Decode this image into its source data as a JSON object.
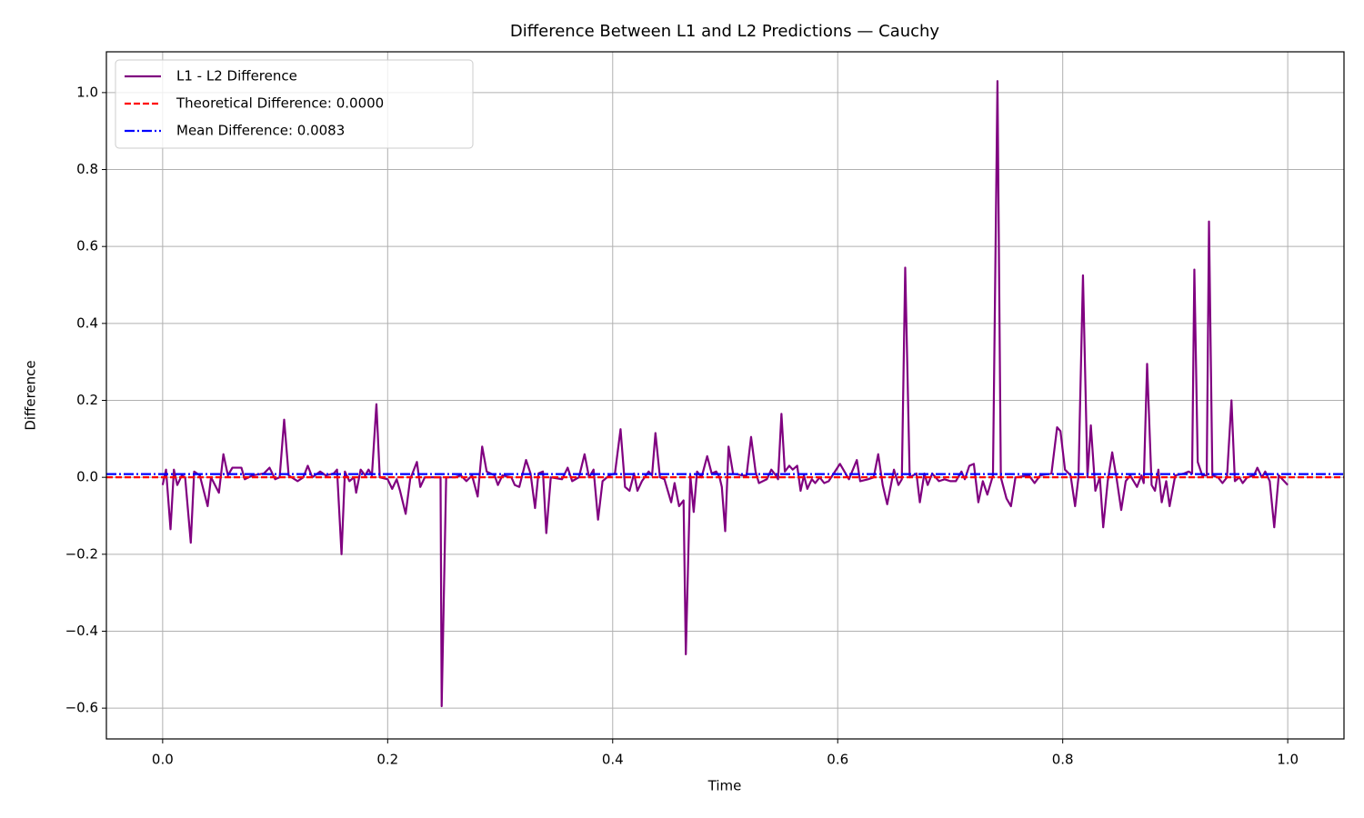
{
  "chart_data": {
    "type": "line",
    "title": "Difference Between L1 and L2 Predictions — Cauchy",
    "xlabel": "Time",
    "ylabel": "Difference",
    "x": [
      0.0,
      0.003,
      0.007,
      0.01,
      0.013,
      0.017,
      0.02,
      0.025,
      0.028,
      0.033,
      0.04,
      0.043,
      0.05,
      0.054,
      0.058,
      0.062,
      0.07,
      0.073,
      0.08,
      0.09,
      0.095,
      0.1,
      0.104,
      0.108,
      0.112,
      0.12,
      0.125,
      0.129,
      0.133,
      0.14,
      0.145,
      0.152,
      0.155,
      0.159,
      0.162,
      0.166,
      0.17,
      0.172,
      0.176,
      0.18,
      0.183,
      0.186,
      0.19,
      0.193,
      0.2,
      0.204,
      0.208,
      0.211,
      0.216,
      0.22,
      0.226,
      0.229,
      0.233,
      0.24,
      0.247,
      0.248,
      0.252,
      0.26,
      0.265,
      0.27,
      0.275,
      0.28,
      0.284,
      0.288,
      0.295,
      0.298,
      0.302,
      0.31,
      0.313,
      0.317,
      0.323,
      0.327,
      0.331,
      0.334,
      0.338,
      0.341,
      0.345,
      0.355,
      0.36,
      0.364,
      0.37,
      0.375,
      0.379,
      0.383,
      0.387,
      0.391,
      0.397,
      0.402,
      0.407,
      0.411,
      0.415,
      0.419,
      0.422,
      0.426,
      0.432,
      0.435,
      0.438,
      0.442,
      0.446,
      0.452,
      0.455,
      0.459,
      0.463,
      0.465,
      0.469,
      0.472,
      0.475,
      0.479,
      0.484,
      0.488,
      0.492,
      0.495,
      0.497,
      0.5,
      0.503,
      0.507,
      0.515,
      0.519,
      0.523,
      0.527,
      0.53,
      0.537,
      0.541,
      0.545,
      0.547,
      0.55,
      0.553,
      0.557,
      0.56,
      0.564,
      0.567,
      0.57,
      0.573,
      0.577,
      0.58,
      0.584,
      0.588,
      0.592,
      0.602,
      0.607,
      0.61,
      0.617,
      0.62,
      0.627,
      0.632,
      0.636,
      0.64,
      0.644,
      0.65,
      0.654,
      0.657,
      0.66,
      0.664,
      0.67,
      0.673,
      0.677,
      0.68,
      0.684,
      0.69,
      0.695,
      0.7,
      0.705,
      0.71,
      0.713,
      0.717,
      0.721,
      0.725,
      0.729,
      0.733,
      0.738,
      0.742,
      0.745,
      0.75,
      0.754,
      0.758,
      0.77,
      0.775,
      0.78,
      0.79,
      0.795,
      0.798,
      0.802,
      0.807,
      0.811,
      0.814,
      0.818,
      0.822,
      0.825,
      0.829,
      0.833,
      0.836,
      0.84,
      0.844,
      0.848,
      0.852,
      0.856,
      0.86,
      0.863,
      0.866,
      0.87,
      0.872,
      0.875,
      0.879,
      0.882,
      0.885,
      0.888,
      0.892,
      0.895,
      0.9,
      0.908,
      0.912,
      0.915,
      0.917,
      0.92,
      0.924,
      0.928,
      0.93,
      0.933,
      0.938,
      0.942,
      0.946,
      0.95,
      0.953,
      0.957,
      0.96,
      0.964,
      0.97,
      0.973,
      0.977,
      0.98,
      0.984,
      0.988,
      0.992,
      1.0
    ],
    "series": [
      {
        "name": "L1 - L2 Difference",
        "color": "#800080",
        "values": [
          -0.02,
          0.02,
          -0.135,
          0.02,
          -0.02,
          0.005,
          0.0,
          -0.17,
          0.015,
          0.005,
          -0.075,
          0.0,
          -0.04,
          0.06,
          0.005,
          0.025,
          0.025,
          -0.005,
          0.005,
          0.01,
          0.025,
          -0.005,
          0.0,
          0.15,
          0.005,
          -0.01,
          0.0,
          0.03,
          0.0,
          0.015,
          0.005,
          0.01,
          0.02,
          -0.2,
          0.015,
          -0.01,
          0.0,
          -0.04,
          0.02,
          0.005,
          0.02,
          0.005,
          0.19,
          0.0,
          -0.005,
          -0.03,
          -0.005,
          -0.035,
          -0.095,
          -0.005,
          0.04,
          -0.025,
          0.0,
          0.0,
          0.0,
          -0.595,
          0.0,
          0.0,
          0.005,
          -0.01,
          0.005,
          -0.05,
          0.08,
          0.015,
          0.005,
          -0.02,
          0.005,
          0.0,
          -0.02,
          -0.025,
          0.045,
          0.01,
          -0.08,
          0.01,
          0.015,
          -0.145,
          0.0,
          -0.005,
          0.025,
          -0.01,
          0.0,
          0.06,
          0.0,
          0.02,
          -0.11,
          -0.01,
          0.005,
          0.01,
          0.125,
          -0.025,
          -0.035,
          0.01,
          -0.035,
          -0.01,
          0.015,
          0.005,
          0.115,
          0.0,
          -0.005,
          -0.065,
          -0.015,
          -0.075,
          -0.06,
          -0.46,
          0.005,
          -0.09,
          0.015,
          0.0,
          0.055,
          0.01,
          0.015,
          0.0,
          -0.025,
          -0.14,
          0.08,
          0.01,
          0.005,
          0.005,
          0.105,
          0.015,
          -0.015,
          -0.005,
          0.02,
          0.005,
          -0.005,
          0.165,
          0.015,
          0.03,
          0.02,
          0.03,
          -0.035,
          0.005,
          -0.03,
          -0.005,
          -0.015,
          0.0,
          -0.015,
          -0.01,
          0.035,
          0.01,
          -0.005,
          0.045,
          -0.01,
          -0.005,
          0.0,
          0.06,
          -0.02,
          -0.07,
          0.02,
          -0.02,
          -0.005,
          0.545,
          0.0,
          0.01,
          -0.065,
          0.01,
          -0.02,
          0.01,
          -0.01,
          -0.005,
          -0.01,
          -0.01,
          0.015,
          -0.005,
          0.03,
          0.035,
          -0.065,
          -0.01,
          -0.045,
          0.005,
          1.03,
          0.0,
          -0.055,
          -0.075,
          0.0,
          0.005,
          -0.015,
          0.005,
          0.01,
          0.13,
          0.12,
          0.02,
          0.005,
          -0.075,
          0.0,
          0.525,
          0.0,
          0.135,
          -0.035,
          0.0,
          -0.13,
          -0.01,
          0.065,
          -0.005,
          -0.085,
          -0.01,
          0.005,
          -0.01,
          -0.025,
          0.005,
          -0.015,
          0.295,
          -0.02,
          -0.035,
          0.02,
          -0.065,
          -0.01,
          -0.075,
          0.005,
          0.01,
          0.015,
          0.01,
          0.54,
          0.04,
          0.005,
          0.005,
          0.665,
          0.005,
          0.0,
          -0.015,
          0.0,
          0.2,
          -0.01,
          0.0,
          -0.015,
          0.0,
          0.005,
          0.025,
          0.0,
          0.015,
          -0.01,
          -0.13,
          0.005,
          -0.02
        ]
      }
    ],
    "hlines": [
      {
        "name": "Theoretical Difference: 0.0000",
        "color": "#ff0000",
        "value": 0.0,
        "linestyle": "dashed"
      },
      {
        "name": "Mean Difference: 0.0083",
        "color": "#0000ff",
        "value": 0.0083,
        "linestyle": "dashdot"
      }
    ],
    "xlim": [
      -0.05,
      1.05
    ],
    "ylim": [
      -0.68,
      1.106
    ],
    "xticks": [
      {
        "value": 0,
        "label": "0.0"
      },
      0.2,
      0.4,
      0.6,
      0.8,
      {
        "value": 1,
        "label": "1.0"
      }
    ],
    "yticks": [
      {
        "value": -0.6,
        "label": "−0.6"
      },
      {
        "value": -0.4,
        "label": "−0.4"
      },
      {
        "value": -0.2,
        "label": "−0.2"
      },
      {
        "value": 0,
        "label": "0.0"
      },
      0.2,
      0.4,
      0.6,
      0.8,
      {
        "value": 1,
        "label": "1.0"
      }
    ],
    "grid": true,
    "legend": "upper left"
  }
}
